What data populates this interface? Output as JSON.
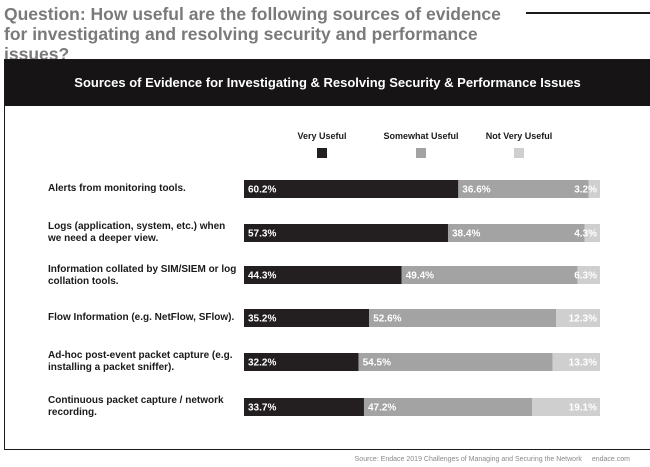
{
  "question": "Question: How useful are the following sources of evidence for investigating and resolving security and performance issues?",
  "chart_data": {
    "type": "bar",
    "orientation": "horizontal",
    "stacked": true,
    "title": "Sources of Evidence for Investigating & Resolving Security & Performance Issues",
    "categories": [
      "Alerts from monitoring tools.",
      "Logs (application, system, etc.) when we need a deeper view.",
      "Information collated by SIM/SIEM or log collation tools.",
      "Flow Information (e.g. NetFlow, SFlow).",
      "Ad-hoc post-event packet capture (e.g. installing a packet sniffer).",
      "Continuous packet capture / network recording."
    ],
    "series": [
      {
        "name": "Very Useful",
        "color": "#231f20",
        "values": [
          60.2,
          57.3,
          44.3,
          35.2,
          32.2,
          33.7
        ],
        "labels": [
          "60.2%",
          "57.3%",
          "44.3%",
          "35.2%",
          "32.2%",
          "33.7%"
        ]
      },
      {
        "name": "Somewhat Useful",
        "color": "#a3a3a3",
        "values": [
          36.6,
          38.4,
          49.4,
          52.6,
          54.5,
          47.2
        ],
        "labels": [
          "36.6%",
          "38.4%",
          "49.4%",
          "52.6%",
          "54.5%",
          "47.2%"
        ]
      },
      {
        "name": "Not Very Useful",
        "color": "#cfcfcf",
        "values": [
          3.2,
          4.3,
          6.3,
          12.3,
          13.3,
          19.1
        ],
        "labels": [
          "3.2%",
          "4.3%",
          "6.3%",
          "12.3%",
          "13.3%",
          "19.1%"
        ]
      }
    ],
    "xlim": [
      0,
      100
    ],
    "grid": false,
    "legend_position": "top-right"
  },
  "footer": {
    "source": "Source: Endace 2019 Challenges of Managing and Securing the Network",
    "brand": "endace.com"
  }
}
